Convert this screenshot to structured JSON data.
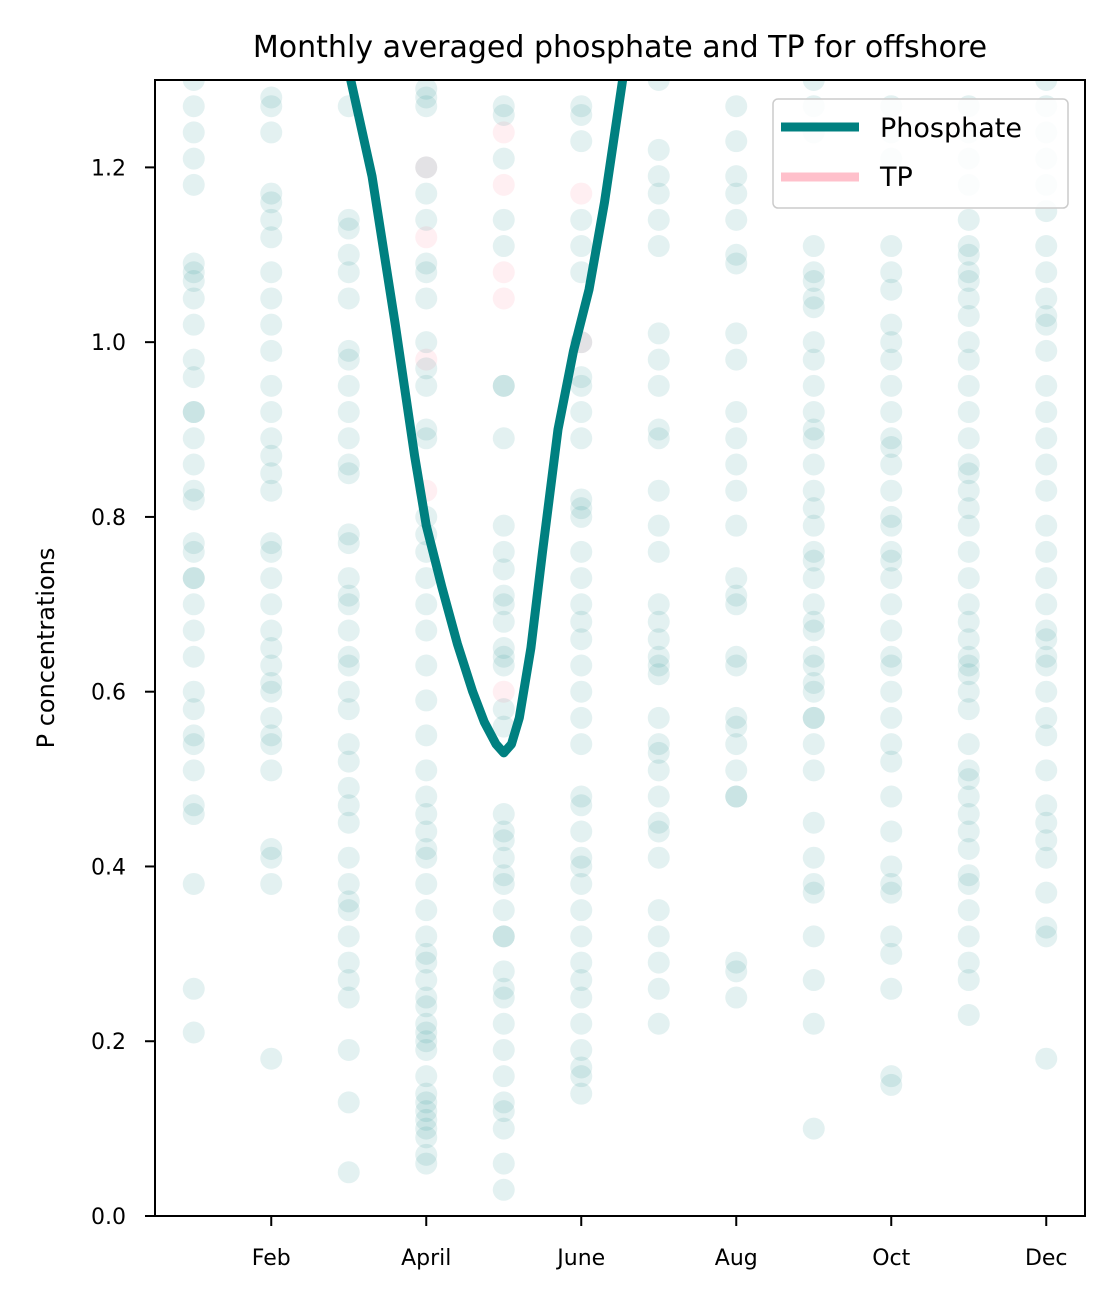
{
  "chart_data": {
    "type": "scatter",
    "title": "Monthly averaged phosphate and TP for offshore",
    "ylabel": "P concentrations",
    "xlabel": "",
    "xlim": [
      0.5,
      12.5
    ],
    "ylim": [
      0.0,
      1.3
    ],
    "x_ticks": [
      {
        "value": 2,
        "label": "Feb"
      },
      {
        "value": 4,
        "label": "April"
      },
      {
        "value": 6,
        "label": "June"
      },
      {
        "value": 8,
        "label": "Aug"
      },
      {
        "value": 10,
        "label": "Oct"
      },
      {
        "value": 12,
        "label": "Dec"
      }
    ],
    "y_ticks": [
      {
        "value": 0.0,
        "label": "0.0"
      },
      {
        "value": 0.2,
        "label": "0.2"
      },
      {
        "value": 0.4,
        "label": "0.4"
      },
      {
        "value": 0.6,
        "label": "0.6"
      },
      {
        "value": 0.8,
        "label": "0.8"
      },
      {
        "value": 1.0,
        "label": "1.0"
      },
      {
        "value": 1.2,
        "label": "1.2"
      }
    ],
    "legend": {
      "placement": "top-right",
      "entries": [
        {
          "label": "Phosphate",
          "color": "#008080"
        },
        {
          "label": "TP",
          "color": "#ffc0cb"
        }
      ]
    },
    "colors": {
      "phosphate": "#008080",
      "tp": "#ffc0cb"
    },
    "phosphate_line": {
      "x": [
        3.0,
        3.3,
        3.6,
        3.85,
        4.0,
        4.2,
        4.4,
        4.6,
        4.75,
        4.9,
        5.0,
        5.1,
        5.2,
        5.35,
        5.5,
        5.7,
        5.9,
        6.1,
        6.3,
        6.55
      ],
      "y": [
        1.31,
        1.19,
        1.02,
        0.87,
        0.79,
        0.72,
        0.655,
        0.6,
        0.565,
        0.54,
        0.53,
        0.54,
        0.57,
        0.65,
        0.76,
        0.9,
        0.99,
        1.06,
        1.16,
        1.31
      ]
    },
    "tp_points": {
      "x": [
        4,
        4,
        4,
        4,
        5,
        5,
        5,
        5,
        5,
        6,
        6
      ],
      "y": [
        1.2,
        1.12,
        0.98,
        0.83,
        1.24,
        1.18,
        1.08,
        1.05,
        0.6,
        1.17,
        1.0
      ]
    },
    "phosphate_points": [
      {
        "x": 1,
        "y": [
          1.3,
          1.27,
          1.24,
          1.21,
          1.18,
          1.09,
          1.08,
          1.07,
          1.05,
          1.02,
          0.98,
          0.96,
          0.92,
          0.92,
          0.89,
          0.86,
          0.83,
          0.82,
          0.77,
          0.76,
          0.73,
          0.73,
          0.7,
          0.67,
          0.64,
          0.6,
          0.58,
          0.55,
          0.54,
          0.51,
          0.47,
          0.46,
          0.38,
          0.26,
          0.21
        ]
      },
      {
        "x": 2,
        "y": [
          1.28,
          1.27,
          1.24,
          1.17,
          1.16,
          1.14,
          1.12,
          1.08,
          1.05,
          1.02,
          0.99,
          0.95,
          0.92,
          0.89,
          0.87,
          0.85,
          0.83,
          0.77,
          0.76,
          0.73,
          0.7,
          0.67,
          0.65,
          0.63,
          0.61,
          0.6,
          0.57,
          0.55,
          0.54,
          0.51,
          0.42,
          0.41,
          0.38,
          0.18
        ]
      },
      {
        "x": 3,
        "y": [
          1.27,
          1.14,
          1.13,
          1.1,
          1.08,
          1.05,
          0.99,
          0.98,
          0.95,
          0.92,
          0.89,
          0.86,
          0.85,
          0.78,
          0.77,
          0.73,
          0.71,
          0.7,
          0.67,
          0.64,
          0.63,
          0.6,
          0.58,
          0.54,
          0.52,
          0.49,
          0.47,
          0.45,
          0.41,
          0.38,
          0.36,
          0.35,
          0.32,
          0.29,
          0.27,
          0.25,
          0.19,
          0.13,
          0.05
        ]
      },
      {
        "x": 4,
        "y": [
          1.29,
          1.28,
          1.27,
          1.2,
          1.17,
          1.14,
          1.09,
          1.08,
          1.05,
          1.0,
          0.97,
          0.95,
          0.9,
          0.89,
          0.8,
          0.78,
          0.76,
          0.73,
          0.7,
          0.67,
          0.63,
          0.59,
          0.55,
          0.51,
          0.48,
          0.46,
          0.44,
          0.42,
          0.41,
          0.38,
          0.35,
          0.32,
          0.3,
          0.29,
          0.27,
          0.25,
          0.24,
          0.22,
          0.21,
          0.2,
          0.19,
          0.16,
          0.14,
          0.13,
          0.12,
          0.11,
          0.1,
          0.09,
          0.07,
          0.06
        ]
      },
      {
        "x": 5,
        "y": [
          1.27,
          1.26,
          1.21,
          1.14,
          1.11,
          0.95,
          0.95,
          0.89,
          0.79,
          0.76,
          0.74,
          0.71,
          0.7,
          0.68,
          0.65,
          0.64,
          0.63,
          0.58,
          0.56,
          0.46,
          0.44,
          0.43,
          0.41,
          0.39,
          0.38,
          0.35,
          0.32,
          0.32,
          0.28,
          0.26,
          0.25,
          0.22,
          0.19,
          0.16,
          0.13,
          0.12,
          0.1,
          0.06,
          0.03
        ]
      },
      {
        "x": 6,
        "y": [
          1.27,
          1.26,
          1.23,
          1.14,
          1.11,
          1.08,
          1.0,
          0.96,
          0.95,
          0.92,
          0.89,
          0.82,
          0.81,
          0.8,
          0.76,
          0.73,
          0.7,
          0.68,
          0.66,
          0.63,
          0.6,
          0.57,
          0.54,
          0.48,
          0.47,
          0.44,
          0.41,
          0.4,
          0.38,
          0.35,
          0.32,
          0.29,
          0.27,
          0.25,
          0.22,
          0.19,
          0.17,
          0.16,
          0.14
        ]
      },
      {
        "x": 7,
        "y": [
          1.3,
          1.22,
          1.19,
          1.17,
          1.14,
          1.11,
          1.01,
          0.98,
          0.95,
          0.9,
          0.89,
          0.83,
          0.79,
          0.76,
          0.7,
          0.68,
          0.66,
          0.64,
          0.63,
          0.62,
          0.57,
          0.54,
          0.53,
          0.51,
          0.48,
          0.45,
          0.44,
          0.41,
          0.35,
          0.32,
          0.29,
          0.26,
          0.22
        ]
      },
      {
        "x": 8,
        "y": [
          1.27,
          1.23,
          1.19,
          1.17,
          1.14,
          1.1,
          1.09,
          1.01,
          0.98,
          0.92,
          0.89,
          0.86,
          0.83,
          0.79,
          0.73,
          0.71,
          0.7,
          0.64,
          0.63,
          0.57,
          0.56,
          0.54,
          0.51,
          0.48,
          0.48,
          0.29,
          0.28,
          0.25
        ]
      },
      {
        "x": 9,
        "y": [
          1.3,
          1.27,
          1.24,
          1.11,
          1.08,
          1.07,
          1.05,
          1.04,
          1.0,
          0.98,
          0.95,
          0.92,
          0.9,
          0.89,
          0.86,
          0.83,
          0.81,
          0.79,
          0.76,
          0.75,
          0.73,
          0.7,
          0.68,
          0.67,
          0.64,
          0.63,
          0.61,
          0.6,
          0.57,
          0.57,
          0.54,
          0.51,
          0.45,
          0.41,
          0.38,
          0.37,
          0.32,
          0.27,
          0.22,
          0.1
        ]
      },
      {
        "x": 10,
        "y": [
          1.27,
          1.24,
          1.21,
          1.11,
          1.08,
          1.06,
          1.02,
          1.0,
          0.98,
          0.95,
          0.92,
          0.89,
          0.88,
          0.86,
          0.83,
          0.8,
          0.79,
          0.76,
          0.75,
          0.73,
          0.7,
          0.67,
          0.64,
          0.63,
          0.6,
          0.57,
          0.54,
          0.52,
          0.48,
          0.44,
          0.4,
          0.38,
          0.37,
          0.32,
          0.3,
          0.26,
          0.16,
          0.15
        ]
      },
      {
        "x": 11,
        "y": [
          1.27,
          1.24,
          1.21,
          1.18,
          1.14,
          1.11,
          1.1,
          1.08,
          1.07,
          1.05,
          1.03,
          1.0,
          0.98,
          0.95,
          0.92,
          0.89,
          0.86,
          0.85,
          0.83,
          0.81,
          0.79,
          0.76,
          0.73,
          0.7,
          0.68,
          0.66,
          0.64,
          0.63,
          0.62,
          0.6,
          0.58,
          0.54,
          0.51,
          0.5,
          0.48,
          0.46,
          0.44,
          0.42,
          0.39,
          0.38,
          0.35,
          0.32,
          0.29,
          0.27,
          0.23
        ]
      },
      {
        "x": 12,
        "y": [
          1.3,
          1.27,
          1.24,
          1.21,
          1.18,
          1.15,
          1.11,
          1.08,
          1.05,
          1.03,
          1.02,
          0.99,
          0.95,
          0.92,
          0.89,
          0.86,
          0.83,
          0.79,
          0.76,
          0.73,
          0.7,
          0.67,
          0.66,
          0.64,
          0.63,
          0.6,
          0.57,
          0.55,
          0.51,
          0.47,
          0.45,
          0.43,
          0.41,
          0.37,
          0.33,
          0.32,
          0.18
        ]
      }
    ]
  }
}
